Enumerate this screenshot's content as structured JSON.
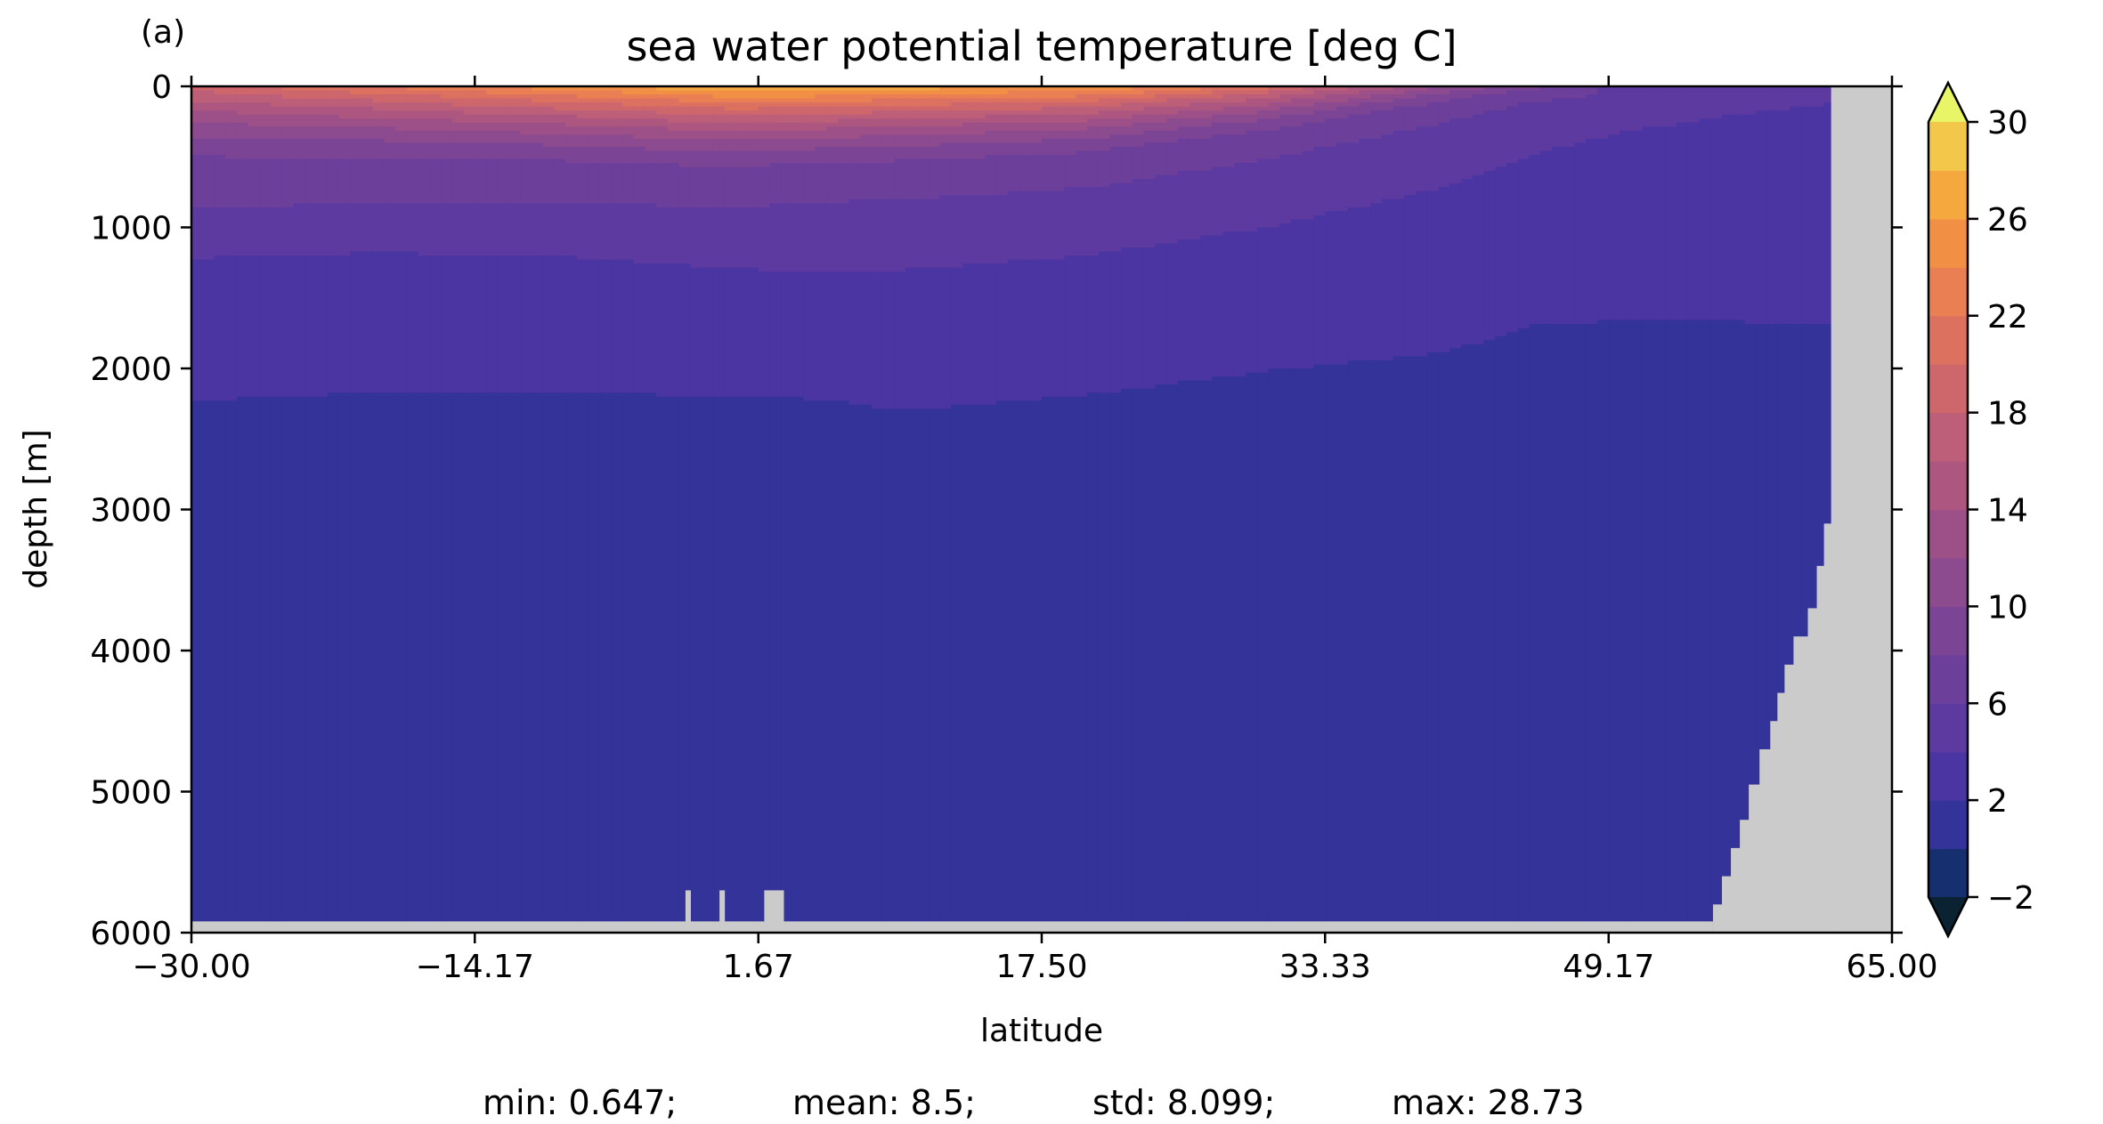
{
  "chart_data": {
    "type": "heatmap",
    "panel_label": "(a)",
    "title": "sea water potential temperature [deg C]",
    "xlabel": "latitude",
    "ylabel": "depth [m]",
    "xlim": [
      -30.0,
      65.0
    ],
    "ylim": [
      6000,
      0
    ],
    "x_ticks": [
      "−30.00",
      "−14.17",
      "1.67",
      "17.50",
      "33.33",
      "49.17",
      "65.00"
    ],
    "x_tick_values": [
      -30.0,
      -14.17,
      1.67,
      17.5,
      33.33,
      49.17,
      65.0
    ],
    "y_ticks": [
      "0",
      "1000",
      "2000",
      "3000",
      "4000",
      "5000",
      "6000"
    ],
    "y_tick_values": [
      0,
      1000,
      2000,
      3000,
      4000,
      5000,
      6000
    ],
    "colorbar": {
      "levels": [
        -2,
        0,
        2,
        4,
        6,
        8,
        10,
        12,
        14,
        16,
        18,
        20,
        22,
        24,
        26,
        28,
        30
      ],
      "tick_labels": [
        "30",
        "26",
        "22",
        "18",
        "14",
        "10",
        "6",
        "2",
        "−2"
      ],
      "tick_values": [
        30,
        26,
        22,
        18,
        14,
        10,
        6,
        2,
        -2
      ],
      "extend": "both",
      "colors": [
        "#0b2a4a",
        "#16306f",
        "#34339a",
        "#4a35a3",
        "#5c3aa0",
        "#6c3f9b",
        "#7c4495",
        "#8c4a8f",
        "#9d5088",
        "#ad5780",
        "#bd5f78",
        "#cd676c",
        "#dc7160",
        "#e97f52",
        "#f19044",
        "#f5a83e",
        "#f3c84a",
        "#eaee62"
      ],
      "under_color": "#0b2233",
      "over_color": "#e8f566"
    },
    "mask_color": "#cbcbcb",
    "contour_depths": {
      "latitudes": [
        -30,
        -20,
        -10,
        0,
        5,
        10,
        20,
        30,
        40,
        45,
        50,
        55,
        60,
        62
      ],
      "iso_2": [
        2230,
        2170,
        2180,
        2190,
        2220,
        2300,
        2190,
        2020,
        1890,
        1700,
        1660,
        1660,
        1690,
        1700
      ],
      "iso_4": [
        1220,
        1180,
        1200,
        1290,
        1320,
        1300,
        1200,
        1000,
        720,
        480,
        330,
        220,
        150,
        110
      ],
      "iso_6": [
        870,
        820,
        820,
        860,
        820,
        800,
        720,
        520,
        260,
        110,
        40,
        20,
        10,
        5
      ],
      "surface_sst": [
        19,
        22,
        25,
        28,
        28,
        27,
        26,
        21,
        12,
        9,
        5,
        4,
        3,
        2
      ]
    },
    "stats": {
      "min": "min: 0.647;",
      "mean": "mean: 8.5;",
      "std": "std: 8.099;",
      "max": "max: 28.73"
    }
  }
}
